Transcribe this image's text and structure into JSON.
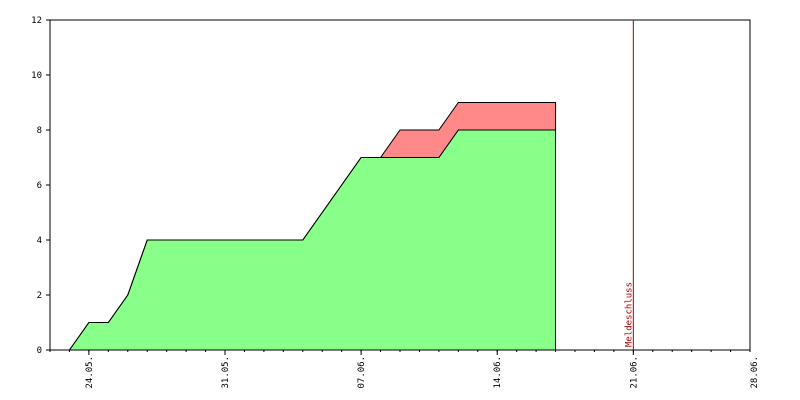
{
  "chart_data": {
    "type": "area",
    "stacked": true,
    "title": "",
    "xlabel": "",
    "ylabel": "",
    "ylim": [
      0,
      12
    ],
    "yticks": [
      0,
      2,
      4,
      6,
      8,
      10,
      12
    ],
    "ytick_labels": [
      "0",
      "2",
      "4",
      "6",
      "8",
      "10",
      "12"
    ],
    "x_day_range": [
      22,
      58
    ],
    "xticks": [
      {
        "day": 24,
        "label": "24.05."
      },
      {
        "day": 31,
        "label": "31.05."
      },
      {
        "day": 38,
        "label": "07.06."
      },
      {
        "day": 45,
        "label": "14.06."
      },
      {
        "day": 52,
        "label": "21.06."
      },
      {
        "day": 59,
        "label": "28.06."
      }
    ],
    "x_minor_tick_interval_days": 1,
    "x": [
      23,
      24,
      25,
      26,
      27,
      28,
      29,
      30,
      31,
      32,
      33,
      34,
      35,
      36,
      37,
      38,
      39,
      40,
      41,
      42,
      43,
      44,
      45,
      46,
      47,
      48
    ],
    "series": [
      {
        "color": "#88ff88",
        "values": [
          0,
          1,
          1,
          2,
          4,
          4,
          4,
          4,
          4,
          4,
          4,
          4,
          4,
          5,
          6,
          7,
          7,
          7,
          7,
          7,
          8,
          8,
          8,
          8,
          8,
          8
        ]
      },
      {
        "color": "#ff8888",
        "values": [
          0,
          0,
          0,
          0,
          0,
          0,
          0,
          0,
          0,
          0,
          0,
          0,
          0,
          0,
          0,
          0,
          0,
          1,
          1,
          1,
          1,
          1,
          1,
          1,
          1,
          1
        ]
      }
    ],
    "annotations": [
      {
        "day": 52,
        "label": "Meldeschluss",
        "color": "#aa0000"
      }
    ],
    "grid": false,
    "legend": "none",
    "colors": {
      "axis": "#000000",
      "outline": "#000000",
      "text": "#000000",
      "background": "#ffffff"
    }
  }
}
